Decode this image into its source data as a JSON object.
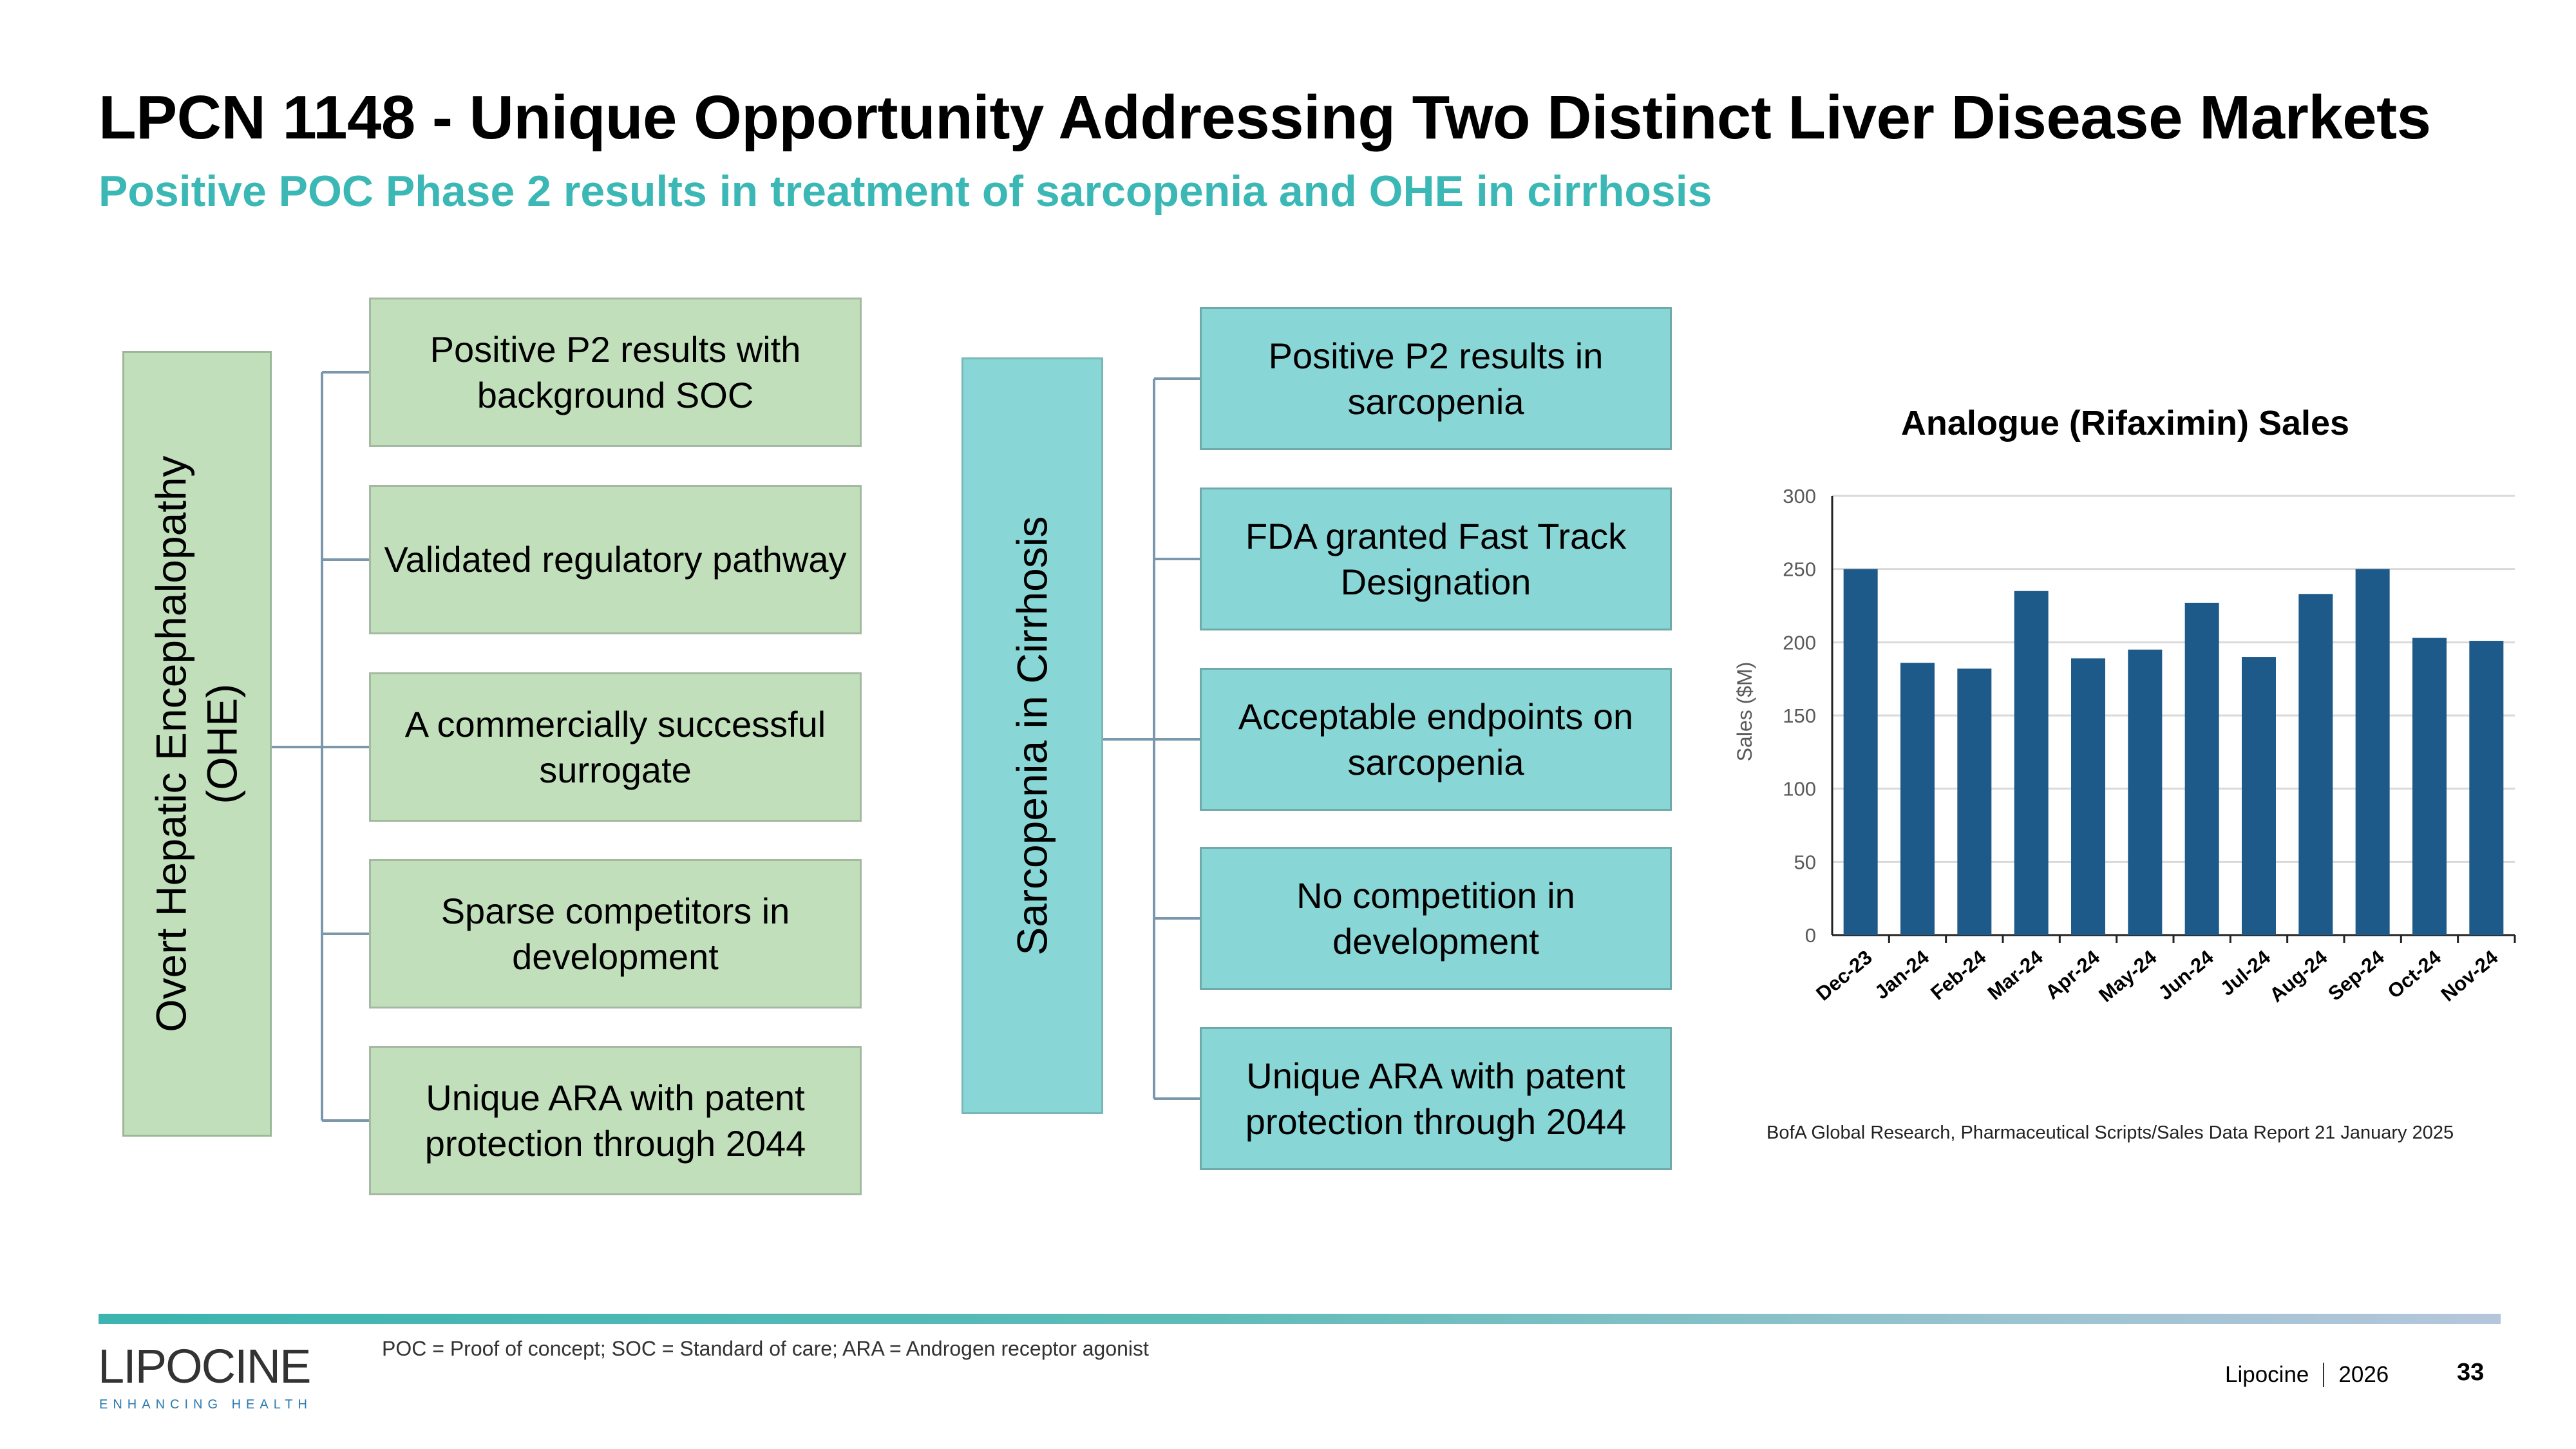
{
  "slide": {
    "title": "LPCN 1148 - Unique Opportunity Addressing Two Distinct Liver Disease Markets",
    "subtitle": "Positive POC Phase 2 results in treatment of sarcopenia and OHE in cirrhosis"
  },
  "colors": {
    "title": "#000000",
    "subtitle": "#3bb8b5",
    "green_box": "#c1dfba",
    "teal_box": "#89d6d7",
    "bar": "#1d5a8a",
    "connector": "#7a97ab"
  },
  "ohe_tree": {
    "root_line1": "Overt Hepatic Encephalopathy",
    "root_line2": "(OHE)",
    "items": [
      {
        "line1": "Positive P2 results with",
        "line2": "background SOC"
      },
      {
        "line1": "Validated regulatory pathway",
        "line2": ""
      },
      {
        "line1": "A commercially successful",
        "line2": "surrogate"
      },
      {
        "line1": "Sparse competitors in",
        "line2": "development"
      },
      {
        "line1": "Unique ARA with patent",
        "line2": "protection through 2044"
      }
    ]
  },
  "sarcopenia_tree": {
    "root": "Sarcopenia in Cirrhosis",
    "items": [
      {
        "line1": "Positive P2 results in",
        "line2": "sarcopenia"
      },
      {
        "line1": "FDA granted Fast Track",
        "line2": "Designation"
      },
      {
        "line1": "Acceptable endpoints on",
        "line2": "sarcopenia"
      },
      {
        "line1": "No competition in",
        "line2": "development"
      },
      {
        "line1": "Unique ARA with patent",
        "line2": "protection through 2044"
      }
    ]
  },
  "chart_data": {
    "type": "bar",
    "title": "Analogue (Rifaximin) Sales",
    "xlabel": "",
    "ylabel": "Sales ($M)",
    "categories": [
      "Dec-23",
      "Jan-24",
      "Feb-24",
      "Mar-24",
      "Apr-24",
      "May-24",
      "Jun-24",
      "Jul-24",
      "Aug-24",
      "Sep-24",
      "Oct-24",
      "Nov-24"
    ],
    "values": [
      250,
      186,
      182,
      235,
      189,
      195,
      227,
      190,
      233,
      250,
      203,
      201
    ],
    "ylim": [
      0,
      300
    ],
    "yticks": [
      "0",
      "50",
      "100",
      "150",
      "200",
      "250",
      "300"
    ],
    "grid": true,
    "legend": "none"
  },
  "source_note": "BofA Global Research, Pharmaceutical Scripts/Sales Data Report  21 January 2025",
  "footnote": "POC = Proof of concept; SOC = Standard of care; ARA = Androgen receptor agonist",
  "footer": {
    "logo_text": "LIPOCINE",
    "logo_tagline": "ENHANCING HEALTH",
    "company": "Lipocine",
    "year": "2026",
    "page_number": "33"
  }
}
